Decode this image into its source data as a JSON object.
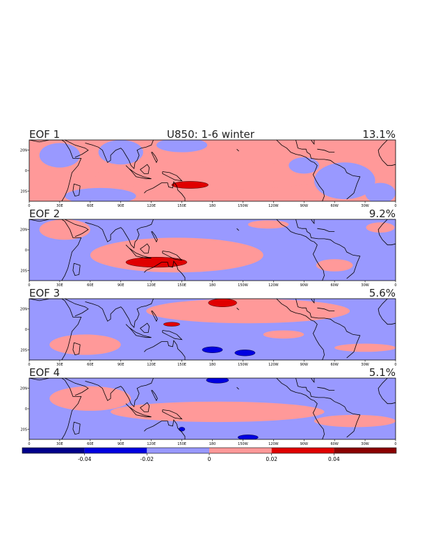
{
  "chart_data": {
    "type": "heatmap",
    "title": "U850: 1-6 winter",
    "xlabel": "",
    "ylabel": "",
    "x_ticks": [
      "0",
      "30E",
      "60E",
      "90E",
      "120E",
      "150E",
      "180",
      "150W",
      "120W",
      "90W",
      "60W",
      "30W",
      "0"
    ],
    "y_ticks": [
      "20N",
      "0",
      "20S"
    ],
    "colorbar": {
      "ticks": [
        "-0.04",
        "-0.02",
        "0",
        "0.02",
        "0.04"
      ],
      "range": [
        -0.06,
        0.06
      ],
      "levels": [
        {
          "from": -0.06,
          "to": -0.04,
          "color": "#00008b"
        },
        {
          "from": -0.04,
          "to": -0.02,
          "color": "#0000e0"
        },
        {
          "from": -0.02,
          "to": 0.0,
          "color": "#9999ff"
        },
        {
          "from": 0.0,
          "to": 0.02,
          "color": "#ff9999"
        },
        {
          "from": 0.02,
          "to": 0.04,
          "color": "#e00000"
        },
        {
          "from": 0.04,
          "to": 0.06,
          "color": "#8b0000"
        }
      ]
    },
    "panels": [
      {
        "label": "EOF 1",
        "variance": "13.1%",
        "background": 0.01,
        "features": [
          {
            "lon": 180,
            "lat": -5,
            "rx": 115,
            "ry": 14,
            "value": 0.01
          },
          {
            "lon": 158,
            "lat": -14,
            "rx": 18,
            "ry": 3.5,
            "value": 0.03
          },
          {
            "lon": 90,
            "lat": 18,
            "rx": 22,
            "ry": 12,
            "value": -0.01
          },
          {
            "lon": 70,
            "lat": -25,
            "rx": 35,
            "ry": 8,
            "value": -0.01
          },
          {
            "lon": 150,
            "lat": 25,
            "rx": 25,
            "ry": 7,
            "value": -0.01
          },
          {
            "lon": 270,
            "lat": 5,
            "rx": 15,
            "ry": 8,
            "value": -0.01
          },
          {
            "lon": 310,
            "lat": -10,
            "rx": 30,
            "ry": 18,
            "value": -0.01
          },
          {
            "lon": 345,
            "lat": -22,
            "rx": 15,
            "ry": 10,
            "value": -0.01
          },
          {
            "lon": 30,
            "lat": 15,
            "rx": 20,
            "ry": 12,
            "value": -0.01
          }
        ]
      },
      {
        "label": "EOF 2",
        "variance": "9.2%",
        "background": -0.01,
        "features": [
          {
            "lon": 145,
            "lat": -5,
            "rx": 85,
            "ry": 17,
            "value": 0.01
          },
          {
            "lon": 125,
            "lat": -12,
            "rx": 30,
            "ry": 5,
            "value": 0.03
          },
          {
            "lon": 35,
            "lat": 20,
            "rx": 25,
            "ry": 10,
            "value": 0.01
          },
          {
            "lon": 235,
            "lat": 25,
            "rx": 20,
            "ry": 4,
            "value": 0.01
          },
          {
            "lon": 300,
            "lat": -15,
            "rx": 18,
            "ry": 6,
            "value": 0.01
          },
          {
            "lon": 345,
            "lat": 22,
            "rx": 14,
            "ry": 5,
            "value": 0.01
          }
        ]
      },
      {
        "label": "EOF 3",
        "variance": "5.6%",
        "background": -0.01,
        "features": [
          {
            "lon": 215,
            "lat": 18,
            "rx": 100,
            "ry": 12,
            "value": 0.01
          },
          {
            "lon": 190,
            "lat": 26,
            "rx": 14,
            "ry": 4,
            "value": 0.03
          },
          {
            "lon": 140,
            "lat": 5,
            "rx": 8,
            "ry": 2,
            "value": 0.03
          },
          {
            "lon": 180,
            "lat": -20,
            "rx": 10,
            "ry": 3,
            "value": -0.03
          },
          {
            "lon": 212,
            "lat": -23,
            "rx": 10,
            "ry": 3,
            "value": -0.03
          },
          {
            "lon": 55,
            "lat": -15,
            "rx": 35,
            "ry": 10,
            "value": 0.01
          },
          {
            "lon": 330,
            "lat": -18,
            "rx": 30,
            "ry": 4,
            "value": 0.01
          },
          {
            "lon": 250,
            "lat": -5,
            "rx": 20,
            "ry": 4,
            "value": 0.01
          }
        ]
      },
      {
        "label": "EOF 4",
        "variance": "5.1%",
        "background": -0.01,
        "features": [
          {
            "lon": 185,
            "lat": -3,
            "rx": 105,
            "ry": 10,
            "value": 0.01
          },
          {
            "lon": 60,
            "lat": 10,
            "rx": 40,
            "ry": 12,
            "value": 0.01
          },
          {
            "lon": 320,
            "lat": -12,
            "rx": 40,
            "ry": 6,
            "value": 0.01
          },
          {
            "lon": 185,
            "lat": 28,
            "rx": 11,
            "ry": 3,
            "value": -0.03
          },
          {
            "lon": 215,
            "lat": -28,
            "rx": 10,
            "ry": 2.5,
            "value": -0.03
          },
          {
            "lon": 150,
            "lat": -20,
            "rx": 3,
            "ry": 2,
            "value": -0.03
          },
          {
            "lon": 140,
            "lat": -26,
            "rx": 15,
            "ry": 4,
            "value": -0.01
          }
        ]
      }
    ]
  }
}
